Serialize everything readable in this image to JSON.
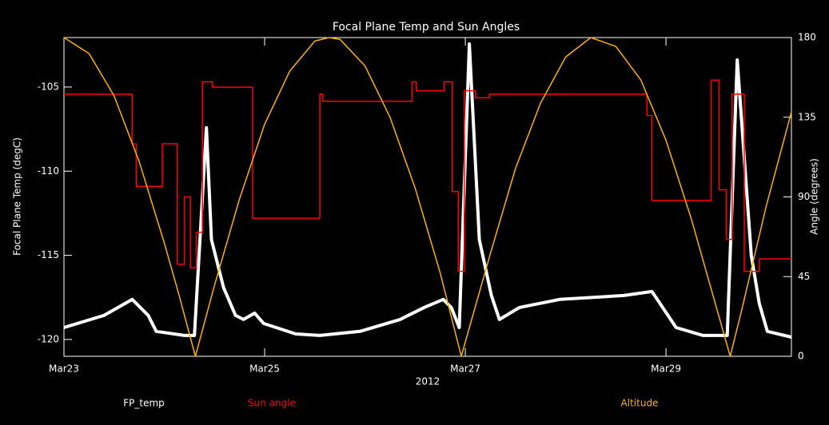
{
  "chart_data": {
    "type": "line",
    "title": "Focal Plane Temp and Sun Angles",
    "xlabel": "2012",
    "ylabel": "Focal Plane Temp (degC)",
    "y2label": "Angle (degrees)",
    "xlim": [
      0,
      7.25
    ],
    "xticks": [
      {
        "value": 0,
        "label": "Mar23"
      },
      {
        "value": 2,
        "label": "Mar25"
      },
      {
        "value": 4,
        "label": "Mar27"
      },
      {
        "value": 6,
        "label": "Mar29"
      }
    ],
    "ylim": [
      -121,
      -102.06
    ],
    "yticks": [
      -120,
      -115,
      -110,
      -105
    ],
    "y2lim": [
      0,
      180
    ],
    "y2ticks": [
      0,
      45,
      90,
      135,
      180
    ],
    "series": [
      {
        "name": "FP_temp",
        "color": "#ffffff",
        "x": [
          0,
          0.4,
          0.68,
          0.84,
          0.92,
          1.2,
          1.3,
          1.42,
          1.47,
          1.59,
          1.71,
          1.79,
          1.9,
          1.99,
          2.31,
          2.55,
          2.95,
          3.35,
          3.59,
          3.78,
          3.86,
          3.94,
          4.04,
          4.14,
          4.26,
          4.34,
          4.54,
          4.94,
          5.58,
          5.86,
          5.94,
          6.1,
          6.37,
          6.61,
          6.71,
          6.85,
          6.93,
          7.01,
          7.25
        ],
        "values": [
          -119.29,
          -118.57,
          -117.62,
          -118.57,
          -119.52,
          -119.76,
          -119.76,
          -107.42,
          -114.07,
          -116.91,
          -118.57,
          -118.81,
          -118.43,
          -119.05,
          -119.67,
          -119.76,
          -119.52,
          -118.81,
          -118.1,
          -117.62,
          -118.1,
          -119.29,
          -102.44,
          -114.07,
          -117.39,
          -118.81,
          -118.1,
          -117.62,
          -117.39,
          -117.15,
          -117.86,
          -119.29,
          -119.76,
          -119.76,
          -103.39,
          -115.01,
          -117.86,
          -119.52,
          -119.86
        ]
      },
      {
        "name": "Sun angle",
        "color": "#ff0000",
        "axis": "y2",
        "x": [
          0,
          0.68,
          0.68,
          0.72,
          0.72,
          0.98,
          0.98,
          1.13,
          1.13,
          1.2,
          1.2,
          1.26,
          1.26,
          1.32,
          1.32,
          1.38,
          1.38,
          1.48,
          1.48,
          1.88,
          1.88,
          2.55,
          2.55,
          2.58,
          2.58,
          3.47,
          3.47,
          3.51,
          3.51,
          3.79,
          3.79,
          3.87,
          3.87,
          3.93,
          3.93,
          3.99,
          3.99,
          4.1,
          4.1,
          4.24,
          4.24,
          5.81,
          5.81,
          5.86,
          5.86,
          6.45,
          6.45,
          6.53,
          6.53,
          6.6,
          6.6,
          6.66,
          6.66,
          6.78,
          6.78,
          6.93,
          6.93,
          7.25
        ],
        "values": [
          148,
          148,
          120,
          120,
          96,
          96,
          120,
          120,
          52,
          52,
          90,
          90,
          50,
          50,
          70,
          70,
          155,
          155,
          152,
          152,
          78,
          78,
          148,
          148,
          144,
          144,
          155,
          155,
          150,
          150,
          155,
          155,
          93,
          93,
          48,
          48,
          150,
          150,
          146,
          146,
          148,
          148,
          136,
          136,
          88,
          88,
          156,
          156,
          94,
          94,
          66,
          66,
          148,
          148,
          48,
          48,
          55,
          55
        ]
      },
      {
        "name": "Altitude",
        "color": "#ffb000",
        "axis": "y2",
        "x": [
          0,
          0.25,
          0.5,
          0.75,
          1,
          1.15,
          1.31,
          1.5,
          1.75,
          2,
          2.25,
          2.5,
          2.64,
          2.75,
          3,
          3.25,
          3.5,
          3.75,
          3.96,
          4.25,
          4.5,
          4.75,
          5,
          5.25,
          5.5,
          5.75,
          6,
          6.25,
          6.5,
          6.64,
          6.75,
          7,
          7.25
        ],
        "values": [
          180,
          171,
          147,
          110,
          64,
          34,
          0,
          40,
          89,
          131,
          161,
          178,
          180,
          179,
          164,
          135,
          95,
          47,
          0,
          58,
          106,
          143,
          169,
          180,
          175,
          156,
          122,
          78,
          28,
          0,
          25,
          85,
          138
        ]
      }
    ]
  }
}
